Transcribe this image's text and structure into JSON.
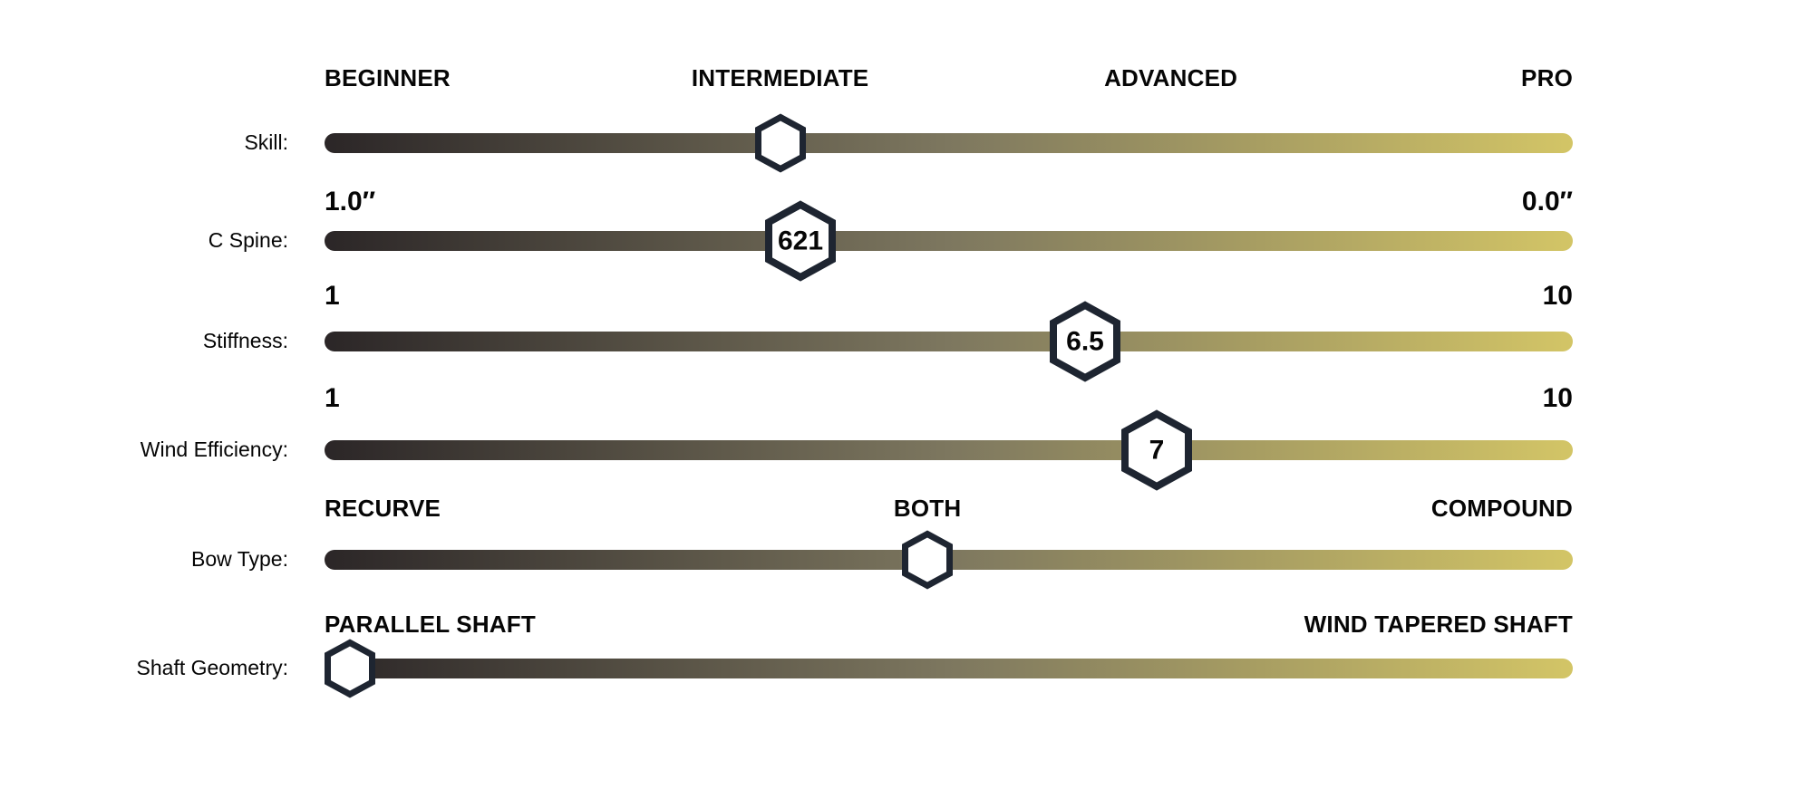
{
  "page": {
    "background": "#ffffff"
  },
  "colors": {
    "bar_gradient_start": "#2B2627",
    "bar_gradient_mid": "#7D775F",
    "bar_gradient_end": "#D3C566",
    "marker_stroke": "#1E2531",
    "marker_fill": "#FFFFFF",
    "label_text": "#050505"
  },
  "chart_data": {
    "type": "slider-scale",
    "title": "",
    "legend_position": "none",
    "rows": [
      {
        "label": "Skill:",
        "scale_labels": [
          {
            "text": "BEGINNER",
            "align": "left",
            "pos_pct": 0
          },
          {
            "text": "INTERMEDIATE",
            "align": "center",
            "pos_pct": 36.5
          },
          {
            "text": "ADVANCED",
            "align": "center",
            "pos_pct": 67.8
          },
          {
            "text": "PRO",
            "align": "right",
            "pos_pct": 100
          }
        ],
        "value": "INTERMEDIATE",
        "marker": {
          "text": "",
          "pos_pct": 36.5
        }
      },
      {
        "label": "C Spine:",
        "scale_labels": [
          {
            "text": "1.0″",
            "align": "left",
            "pos_pct": 0,
            "numeric": true
          },
          {
            "text": "0.0″",
            "align": "right",
            "pos_pct": 100,
            "numeric": true
          }
        ],
        "value": "621",
        "marker": {
          "text": "621",
          "pos_pct": 38.1
        }
      },
      {
        "label": "Stiffness:",
        "scale_labels": [
          {
            "text": "1",
            "align": "left",
            "pos_pct": 0,
            "numeric": true
          },
          {
            "text": "10",
            "align": "right",
            "pos_pct": 100,
            "numeric": true
          }
        ],
        "value": "6.5",
        "marker": {
          "text": "6.5",
          "pos_pct": 60.9
        }
      },
      {
        "label": "Wind Efficiency:",
        "scale_labels": [
          {
            "text": "1",
            "align": "left",
            "pos_pct": 0,
            "numeric": true
          },
          {
            "text": "10",
            "align": "right",
            "pos_pct": 100,
            "numeric": true
          }
        ],
        "value": "7",
        "marker": {
          "text": "7",
          "pos_pct": 66.7
        }
      },
      {
        "label": "Bow Type:",
        "scale_labels": [
          {
            "text": "RECURVE",
            "align": "left",
            "pos_pct": 0
          },
          {
            "text": "BOTH",
            "align": "center",
            "pos_pct": 48.3
          },
          {
            "text": "COMPOUND",
            "align": "right",
            "pos_pct": 100
          }
        ],
        "value": "BOTH",
        "marker": {
          "text": "",
          "pos_pct": 48.3
        }
      },
      {
        "label": "Shaft Geometry:",
        "scale_labels": [
          {
            "text": "PARALLEL SHAFT",
            "align": "left",
            "pos_pct": 0
          },
          {
            "text": "WIND TAPERED SHAFT",
            "align": "right",
            "pos_pct": 100
          }
        ],
        "value": "PARALLEL SHAFT",
        "marker": {
          "text": "",
          "pos_pct": 2.0
        }
      }
    ]
  }
}
